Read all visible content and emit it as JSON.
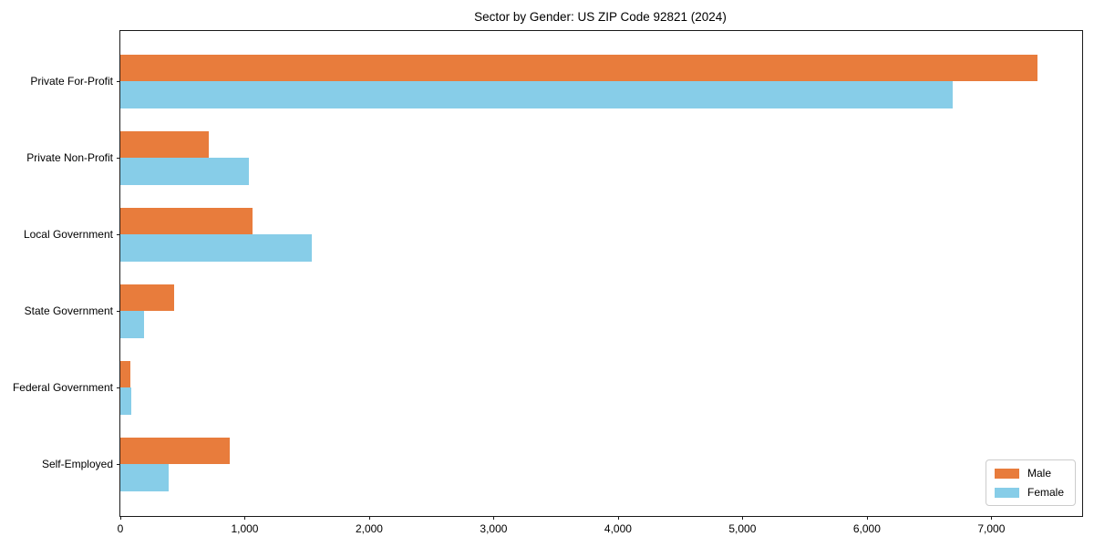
{
  "chart_data": {
    "type": "bar",
    "orientation": "horizontal",
    "title": "Sector by Gender: US ZIP Code 92821 (2024)",
    "categories": [
      "Private For-Profit",
      "Private Non-Profit",
      "Local Government",
      "State Government",
      "Federal Government",
      "Self-Employed"
    ],
    "series": [
      {
        "name": "Male",
        "color": "#e87c3c",
        "values": [
          7370,
          710,
          1060,
          430,
          80,
          880
        ]
      },
      {
        "name": "Female",
        "color": "#87cde8",
        "values": [
          6690,
          1030,
          1540,
          190,
          85,
          390
        ]
      }
    ],
    "xlabel": "",
    "ylabel": "",
    "xlim": [
      0,
      7730
    ],
    "x_ticks": [
      {
        "value": 0,
        "label": "0"
      },
      {
        "value": 1000,
        "label": "1,000"
      },
      {
        "value": 2000,
        "label": "2,000"
      },
      {
        "value": 3000,
        "label": "3,000"
      },
      {
        "value": 4000,
        "label": "4,000"
      },
      {
        "value": 5000,
        "label": "5,000"
      },
      {
        "value": 6000,
        "label": "6,000"
      },
      {
        "value": 7000,
        "label": "7,000"
      }
    ],
    "grid": false,
    "legend": {
      "position": "lower right"
    }
  }
}
